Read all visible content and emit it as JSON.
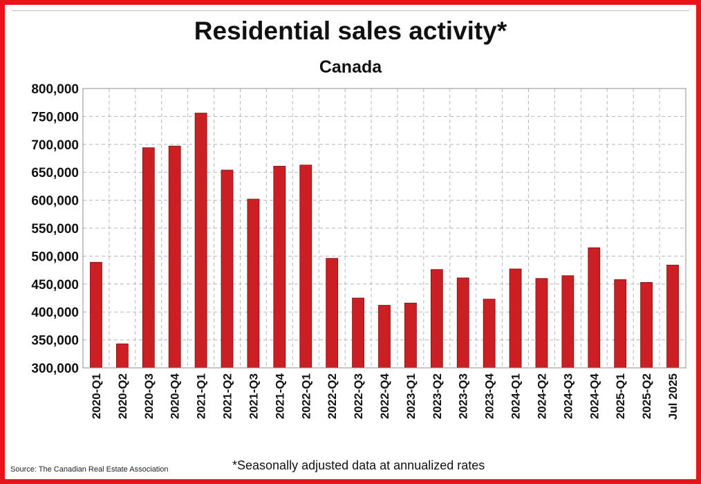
{
  "colors": {
    "frame": "#e8141b",
    "bar": "#cc1f24",
    "bar_stroke": "#7a1114",
    "grid": "#b5b5b5"
  },
  "footer": {
    "source": "Source: The Canadian Real Estate Association",
    "note": "*Seasonally adjusted data at annualized rates"
  },
  "chart_data": {
    "type": "bar",
    "title": "Residential sales activity*",
    "subtitle": "Canada",
    "xlabel": "",
    "ylabel": "",
    "ylim": [
      300000,
      800000
    ],
    "yticks": [
      300000,
      350000,
      400000,
      450000,
      500000,
      550000,
      600000,
      650000,
      700000,
      750000,
      800000
    ],
    "ytick_labels": [
      "300,000",
      "350,000",
      "400,000",
      "450,000",
      "500,000",
      "550,000",
      "600,000",
      "650,000",
      "700,000",
      "750,000",
      "800,000"
    ],
    "grid": true,
    "legend": "none",
    "categories": [
      "2020-Q1",
      "2020-Q2",
      "2020-Q3",
      "2020-Q4",
      "2021-Q1",
      "2021-Q2",
      "2021-Q3",
      "2021-Q4",
      "2022-Q1",
      "2022-Q2",
      "2022-Q3",
      "2022-Q4",
      "2023-Q1",
      "2023-Q2",
      "2023-Q3",
      "2023-Q4",
      "2024-Q1",
      "2024-Q2",
      "2024-Q3",
      "2024-Q4",
      "2025-Q1",
      "2025-Q2",
      "Jul 2025"
    ],
    "values": [
      489000,
      343000,
      694000,
      697000,
      756000,
      654000,
      602000,
      661000,
      663000,
      496000,
      425000,
      412000,
      416000,
      476000,
      461000,
      423000,
      477000,
      460000,
      465000,
      515000,
      458000,
      453000,
      484000
    ]
  }
}
